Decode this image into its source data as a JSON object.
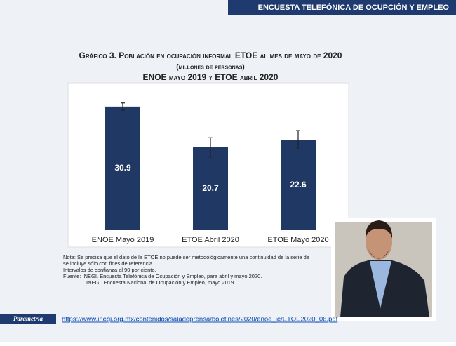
{
  "header": "ENCUESTA TELEFÓNICA DE OCUPCIÓN Y EMPLEO",
  "chart_data": {
    "type": "bar",
    "title": "Gráfico 3. Población en ocupación informal ETOE al mes de mayo de 2020",
    "subtitle": [
      "(millones de personas)",
      "ENOE mayo 2019 y ETOE abril 2020"
    ],
    "categories": [
      "ENOE Mayo 2019",
      "ETOE Abril 2020",
      "ETOE Mayo 2020"
    ],
    "values": [
      30.9,
      20.7,
      22.6
    ],
    "errors": [
      0.9,
      2.4,
      2.3
    ],
    "color": "#1f3864"
  },
  "notes": [
    "Nota: Se precisa que el dato de la ETOE no puede ser metodológicamente una continuidad de la serie de",
    "se incluye sólo con fines de referencia.",
    "Intervalos de confianza al 90 por ciento.",
    "Fuente:   INEGI. Encuesta Telefónica de Ocupación y Empleo, para abril y mayo 2020.",
    "INEGI. Encuesta Nacional de Ocupación y Empleo, mayo 2019."
  ],
  "footer": {
    "brand": "Parametria",
    "url": "https://www.inegi.org.mx/contenidos/saladeprensa/boletines/2020/enoe_ie/ETOE2020_06.pdf"
  }
}
